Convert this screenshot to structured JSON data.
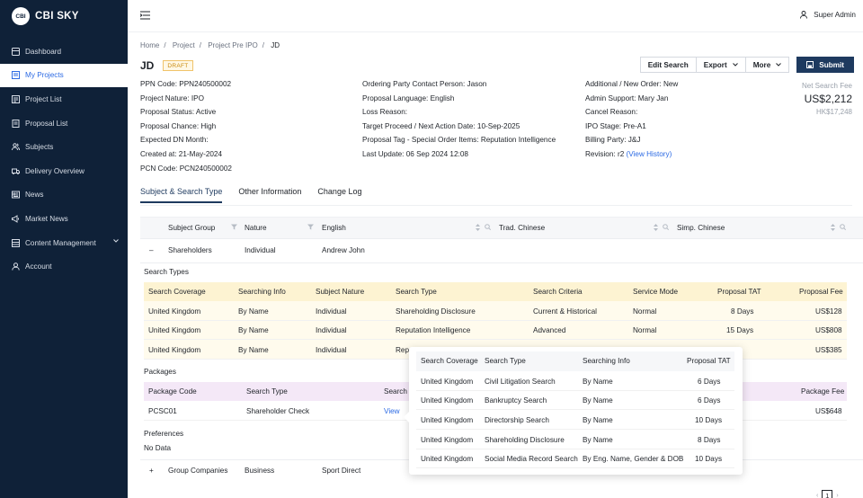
{
  "brand": {
    "logo_text": "CBI",
    "name": "CBI SKY"
  },
  "nav": [
    {
      "label": "Dashboard",
      "icon": "grid-icon"
    },
    {
      "label": "My Projects",
      "icon": "folder-icon",
      "active": true
    },
    {
      "label": "Project List",
      "icon": "list-icon"
    },
    {
      "label": "Proposal List",
      "icon": "file-icon"
    },
    {
      "label": "Subjects",
      "icon": "people-icon"
    },
    {
      "label": "Delivery Overview",
      "icon": "truck-icon"
    },
    {
      "label": "News",
      "icon": "news-icon"
    },
    {
      "label": "Market News",
      "icon": "megaphone-icon"
    },
    {
      "label": "Content Management",
      "icon": "content-icon"
    },
    {
      "label": "Account",
      "icon": "user-icon"
    }
  ],
  "topbar": {
    "user": "Super Admin"
  },
  "breadcrumb": [
    "Home",
    "Project",
    "Project Pre IPO",
    "JD"
  ],
  "page": {
    "title": "JD",
    "status": "DRAFT"
  },
  "actions": {
    "edit": "Edit Search",
    "export": "Export",
    "more": "More",
    "submit": "Submit"
  },
  "info_left": [
    {
      "k": "PPN Code",
      "v": "PPN240500002"
    },
    {
      "k": "Project Nature",
      "v": "IPO"
    },
    {
      "k": "Proposal Status",
      "v": "Active"
    },
    {
      "k": "Proposal Chance",
      "v": "High"
    },
    {
      "k": "Expected DN Month",
      "v": ""
    },
    {
      "k": "Created at",
      "v": "21-May-2024"
    },
    {
      "k": "PCN Code",
      "v": "PCN240500002"
    }
  ],
  "info_mid": [
    {
      "k": "Ordering Party Contact Person",
      "v": "Jason"
    },
    {
      "k": "Proposal Language",
      "v": "English"
    },
    {
      "k": "Loss Reason",
      "v": ""
    },
    {
      "k": "Target Proceed / Next Action Date",
      "v": "10-Sep-2025"
    },
    {
      "k": "Proposal Tag - Special Order Items",
      "v": "Reputation Intelligence"
    },
    {
      "k": "Last Update",
      "v": "06 Sep 2024 12:08"
    }
  ],
  "info_right": [
    {
      "k": "Additional / New Order",
      "v": "New"
    },
    {
      "k": "Admin Support",
      "v": "Mary Jan"
    },
    {
      "k": "Cancel Reason",
      "v": ""
    },
    {
      "k": "IPO Stage",
      "v": "Pre-A1"
    },
    {
      "k": "Billing Party",
      "v": "J&J"
    },
    {
      "k": "Revision",
      "v": "r2",
      "link": "View History"
    }
  ],
  "fee": {
    "label": "Net Search Fee",
    "usd": "US$2,212",
    "hkd": "HK$17,248"
  },
  "tabs": [
    "Subject & Search Type",
    "Other Information",
    "Change Log"
  ],
  "subject_table": {
    "headers": [
      "Subject Group",
      "Nature",
      "English",
      "Trad. Chinese",
      "Simp. Chinese"
    ],
    "rows": [
      {
        "toggle": "–",
        "group": "Shareholders",
        "nature": "Individual",
        "english": "Andrew John"
      },
      {
        "toggle": "+",
        "group": "Group Companies",
        "nature": "Business",
        "english": "Sport Direct"
      }
    ]
  },
  "search_types": {
    "label": "Search Types",
    "headers": [
      "Search Coverage",
      "Searching Info",
      "Subject Nature",
      "Search Type",
      "Search Criteria",
      "Service Mode",
      "Proposal TAT",
      "Proposal Fee"
    ],
    "rows": [
      [
        "United Kingdom",
        "By Name",
        "Individual",
        "Shareholding Disclosure",
        "Current & Historical",
        "Normal",
        "8 Days",
        "US$128"
      ],
      [
        "United Kingdom",
        "By Name",
        "Individual",
        "Reputation Intelligence",
        "Advanced",
        "Normal",
        "15 Days",
        "US$808"
      ],
      [
        "United Kingdom",
        "By Name",
        "Individual",
        "Rep",
        "",
        "",
        "ays",
        "US$385"
      ]
    ]
  },
  "packages": {
    "label": "Packages",
    "headers": [
      "Package Code",
      "Search Type",
      "Search",
      "Package Fee"
    ],
    "rows": [
      [
        "PCSC01",
        "Shareholder Check",
        "View",
        "US$648"
      ]
    ]
  },
  "preferences": {
    "label": "Preferences",
    "value": "No Data"
  },
  "popup": {
    "headers": [
      "Search Coverage",
      "Search Type",
      "Searching Info",
      "Proposal TAT"
    ],
    "rows": [
      [
        "United Kingdom",
        "Civil Litigation Search",
        "By Name",
        "6 Days"
      ],
      [
        "United Kingdom",
        "Bankruptcy Search",
        "By Name",
        "6 Days"
      ],
      [
        "United Kingdom",
        "Directorship Search",
        "By Name",
        "10 Days"
      ],
      [
        "United Kingdom",
        "Shareholding Disclosure",
        "By Name",
        "8 Days"
      ],
      [
        "United Kingdom",
        "Social Media Record Search",
        "By Eng. Name, Gender & DOB",
        "10 Days"
      ]
    ]
  },
  "pager": {
    "current": "1"
  }
}
